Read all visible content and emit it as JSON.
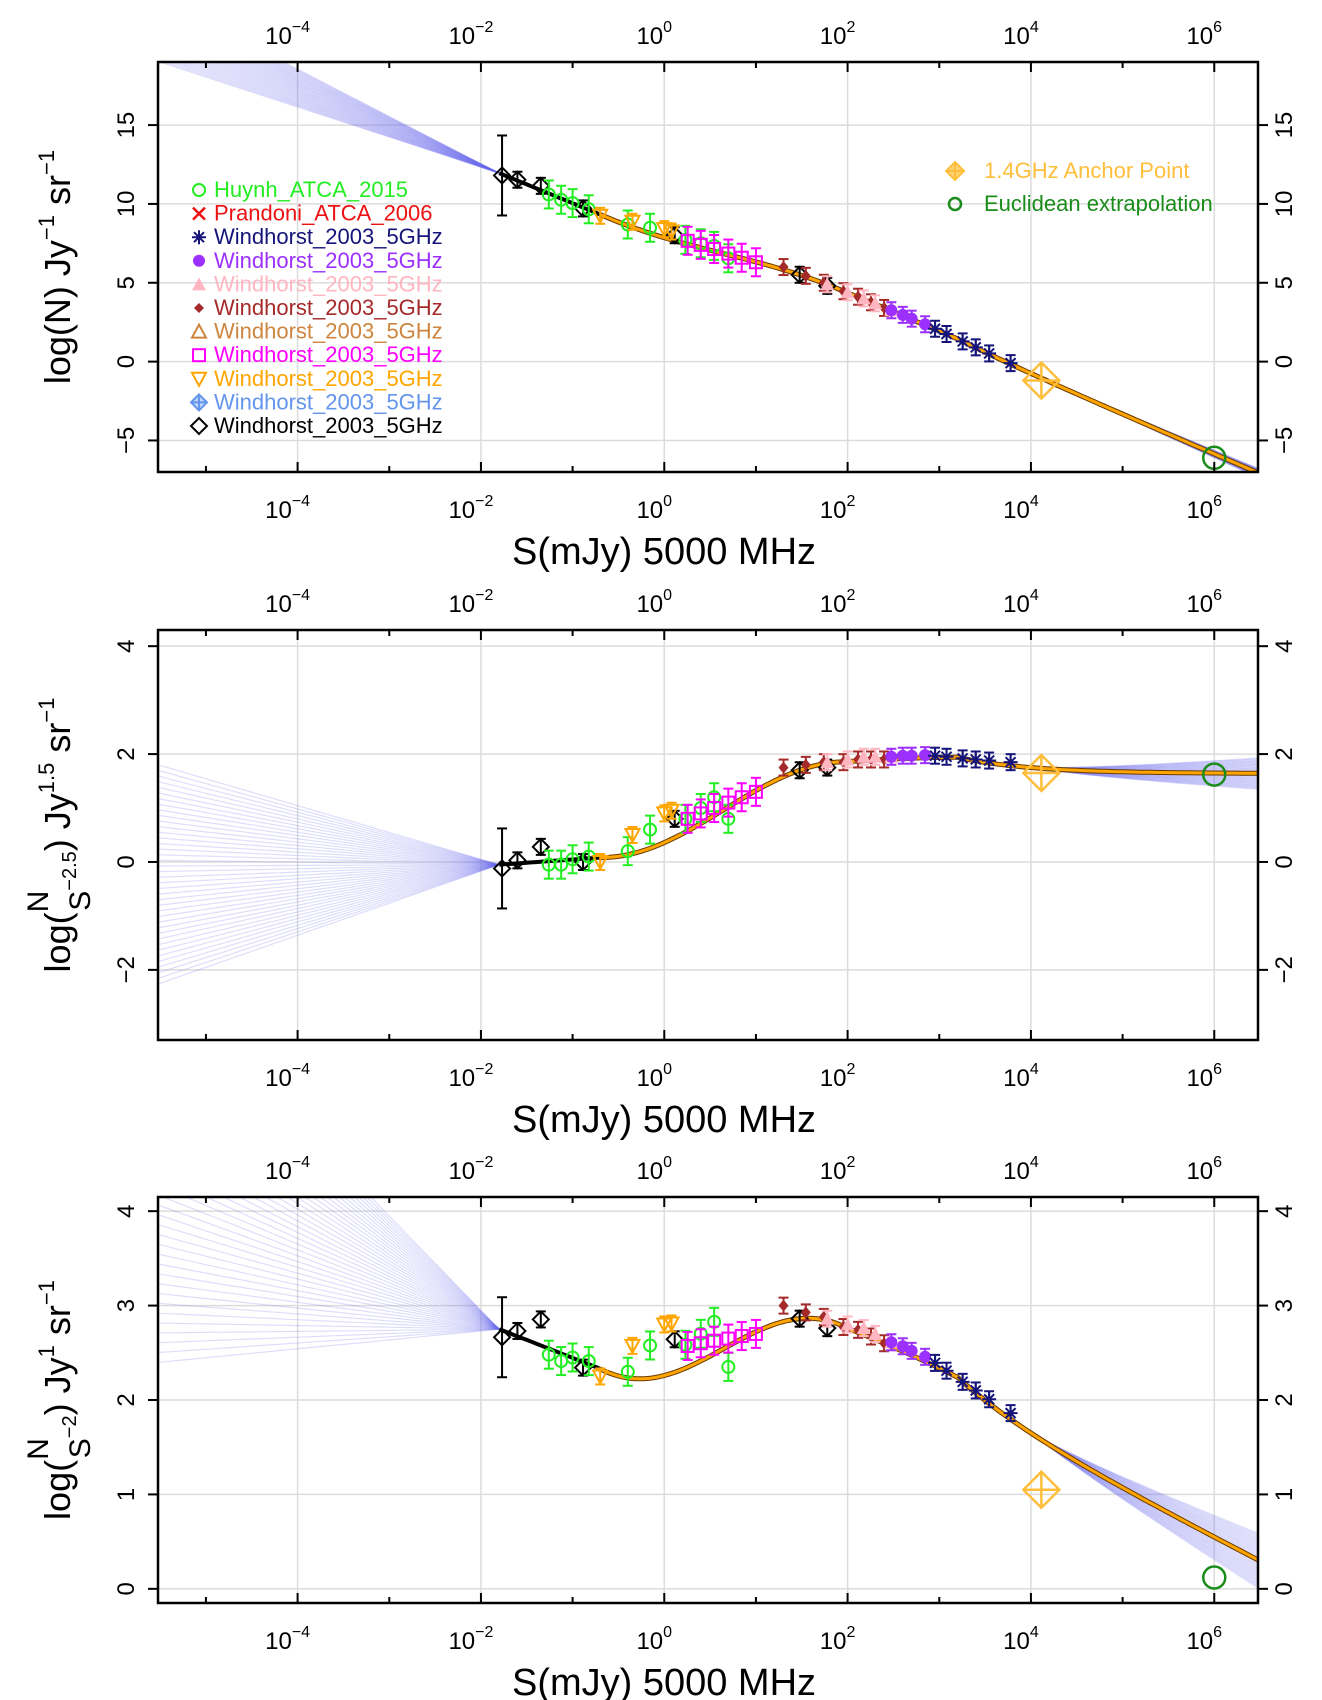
{
  "chart_data": [
    {
      "type": "scatter",
      "panel": "N",
      "xlabel": "S(mJy) 5000 MHz",
      "ylabel": {
        "lhs": "log(N)",
        "unit": "Jy",
        "unit_exp": "−1",
        "sr": "sr",
        "sr_exp": "−1"
      },
      "xscale": "log",
      "xlim": [
        3e-06,
        3000000
      ],
      "ylim": [
        -7,
        19
      ],
      "yticks": [
        -5,
        0,
        5,
        10,
        15
      ],
      "ytick_labels": [
        "−5",
        "0",
        "5",
        "10",
        "15"
      ],
      "xtick_exponents": [
        "−4",
        "−2",
        "0",
        "2",
        "4",
        "6"
      ],
      "xtick_base": "10",
      "anchor": {
        "x": 13000,
        "y": -1.2,
        "label": "1.4GHz Anchor Point"
      },
      "euclid": {
        "x": 1000000,
        "y": -6.1,
        "label": "Euclidean extrapolation"
      }
    },
    {
      "type": "scatter",
      "panel": "N/S^-2.5",
      "xlabel": "S(mJy) 5000 MHz",
      "ylabel": {
        "lhs": "log",
        "frac_num": "N",
        "frac_den": "S",
        "den_exp": "−2.5",
        "unit": "Jy",
        "unit_exp": "1.5",
        "sr": "sr",
        "sr_exp": "−1"
      },
      "xscale": "log",
      "xlim": [
        3e-06,
        3000000
      ],
      "ylim": [
        -3.3,
        4.3
      ],
      "yticks": [
        -2,
        0,
        2,
        4
      ],
      "ytick_labels": [
        "−2",
        "0",
        "2",
        "4"
      ],
      "xtick_exponents": [
        "−4",
        "−2",
        "0",
        "2",
        "4",
        "6"
      ],
      "xtick_base": "10",
      "anchor": {
        "x": 13000,
        "y": 1.65
      },
      "euclid": {
        "x": 1000000,
        "y": 1.62
      }
    },
    {
      "type": "scatter",
      "panel": "N/S^-2",
      "xlabel": "S(mJy) 5000 MHz",
      "ylabel": {
        "lhs": "log",
        "frac_num": "N",
        "frac_den": "S",
        "den_exp": "−2",
        "unit": "Jy",
        "unit_exp": "1",
        "sr": "sr",
        "sr_exp": "−1"
      },
      "xscale": "log",
      "xlim": [
        3e-06,
        3000000
      ],
      "ylim": [
        -0.15,
        4.15
      ],
      "yticks": [
        0,
        1,
        2,
        3,
        4
      ],
      "ytick_labels": [
        "0",
        "1",
        "2",
        "3",
        "4"
      ],
      "xtick_exponents": [
        "−4",
        "−2",
        "0",
        "2",
        "4",
        "6"
      ],
      "xtick_base": "10",
      "anchor": {
        "x": 13000,
        "y": 1.05
      },
      "euclid": {
        "x": 1000000,
        "y": 0.12
      }
    }
  ],
  "legend": {
    "placement": "top-left",
    "entries": [
      {
        "label": "Huynh_ATCA_2015",
        "color": "#22ee22",
        "marker": "circle-open"
      },
      {
        "label": "Prandoni_ATCA_2006",
        "color": "#ee1111",
        "marker": "cross"
      },
      {
        "label": "Windhorst_2003_5GHz",
        "color": "#14147a",
        "marker": "star"
      },
      {
        "label": "Windhorst_2003_5GHz",
        "color": "#9b30ff",
        "marker": "circle-filled"
      },
      {
        "label": "Windhorst_2003_5GHz",
        "color": "#ffb6c1",
        "marker": "triangle-filled"
      },
      {
        "label": "Windhorst_2003_5GHz",
        "color": "#a52a2a",
        "marker": "diamond-filled"
      },
      {
        "label": "Windhorst_2003_5GHz",
        "color": "#cd853f",
        "marker": "triangle-open"
      },
      {
        "label": "Windhorst_2003_5GHz",
        "color": "#ff00ff",
        "marker": "square-open"
      },
      {
        "label": "Windhorst_2003_5GHz",
        "color": "#ffa500",
        "marker": "triangle-down-open"
      },
      {
        "label": "Windhorst_2003_5GHz",
        "color": "#6495ed",
        "marker": "diamond-plus"
      },
      {
        "label": "Windhorst_2003_5GHz",
        "color": "#000000",
        "marker": "diamond-open"
      }
    ]
  },
  "legend_right": {
    "placement": "top-right",
    "entries": [
      {
        "label": "1.4GHz Anchor Point",
        "color": "#ffbe3c",
        "marker": "diamond-plus"
      },
      {
        "label": "Euclidean extrapolation",
        "color": "#1a8c1a",
        "marker": "circle-open"
      }
    ]
  },
  "series_points": {
    "black": {
      "color": "#000000",
      "x": [
        0.017,
        0.025,
        0.045,
        0.13,
        1.3,
        30,
        60
      ],
      "panel2_y": [
        -0.12,
        0.03,
        0.28,
        0.0,
        0.8,
        1.7,
        1.75
      ]
    },
    "green": {
      "color": "#22ee22",
      "x": [
        0.055,
        0.075,
        0.1,
        0.15,
        0.4,
        0.7,
        1.7,
        2.5,
        3.5,
        5.0
      ],
      "panel2_y": [
        -0.05,
        -0.05,
        0.05,
        0.1,
        0.2,
        0.6,
        0.8,
        1.0,
        1.2,
        0.8
      ]
    },
    "orange": {
      "color": "#ffa500",
      "x": [
        0.2,
        0.45,
        1.0,
        1.2
      ],
      "panel2_y": [
        0.0,
        0.5,
        0.9,
        0.95
      ]
    },
    "magenta": {
      "color": "#ff00ff",
      "x": [
        1.8,
        2.5,
        3.5,
        5,
        7,
        10
      ],
      "panel2_y": [
        0.8,
        0.9,
        1.0,
        1.1,
        1.2,
        1.3
      ]
    },
    "brown": {
      "color": "#a52a2a",
      "x": [
        20,
        35,
        55,
        90,
        130,
        180,
        250
      ],
      "panel2_y": [
        1.75,
        1.8,
        1.85,
        1.85,
        1.9,
        1.9,
        1.9
      ]
    },
    "pink": {
      "color": "#ffb6c1",
      "x": [
        60,
        100,
        150,
        200,
        300
      ],
      "panel2_y": [
        1.85,
        1.9,
        1.95,
        1.95,
        1.95
      ]
    },
    "purple": {
      "color": "#9b30ff",
      "x": [
        300,
        400,
        500,
        700
      ],
      "panel2_y": [
        1.95,
        1.97,
        1.97,
        1.98
      ]
    },
    "navy": {
      "color": "#14147a",
      "x": [
        900,
        1200,
        1800,
        2500,
        3500,
        6000
      ],
      "panel2_y": [
        1.97,
        1.95,
        1.92,
        1.9,
        1.88,
        1.85
      ]
    }
  },
  "colors": {
    "fit": "#ffa500",
    "fit_low": "#000000",
    "mcmc": "#6a6aee",
    "grid": "#dcdcdc",
    "euclid": "#1a8c1a"
  }
}
